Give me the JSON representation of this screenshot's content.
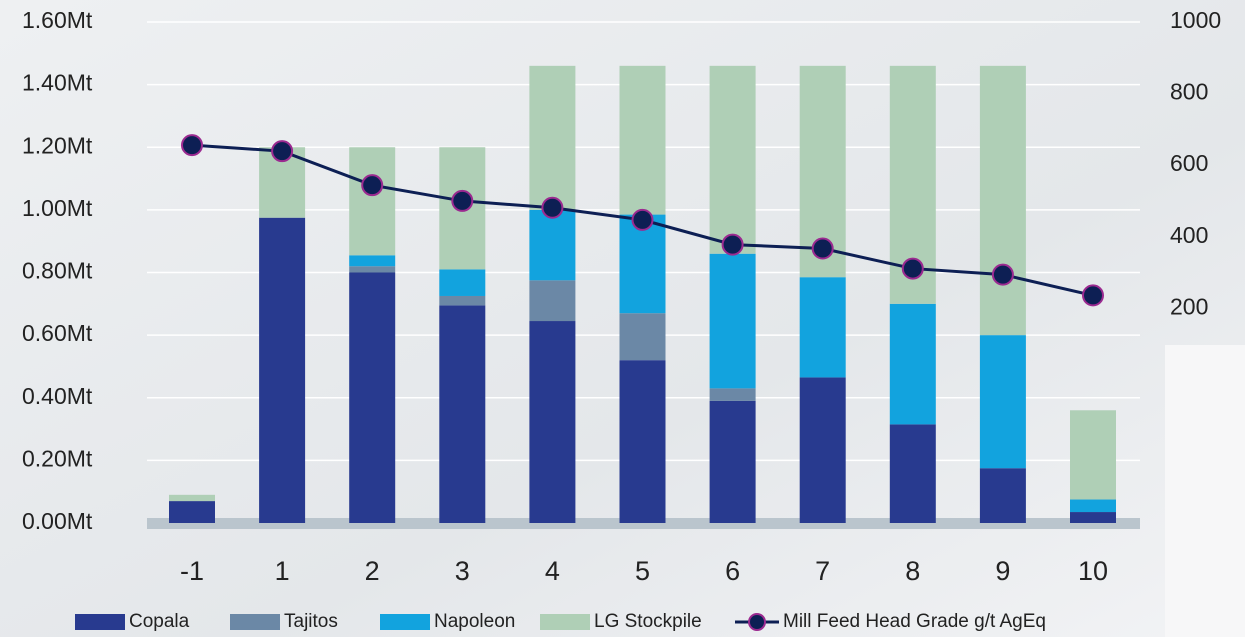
{
  "chart_data": {
    "type": "bar",
    "categories": [
      "-1",
      "1",
      "2",
      "3",
      "4",
      "5",
      "6",
      "7",
      "8",
      "9",
      "10"
    ],
    "series": [
      {
        "name": "Copala",
        "color": "#283a8f",
        "values": [
          0.07,
          0.975,
          0.8,
          0.695,
          0.645,
          0.52,
          0.39,
          0.465,
          0.315,
          0.175,
          0.035
        ]
      },
      {
        "name": "Tajitos",
        "color": "#6b88a6",
        "values": [
          0,
          0,
          0.02,
          0.03,
          0.13,
          0.15,
          0.04,
          0,
          0,
          0,
          0
        ]
      },
      {
        "name": "Napoleon",
        "color": "#12a3de",
        "values": [
          0,
          0,
          0.035,
          0.085,
          0.225,
          0.315,
          0.43,
          0.32,
          0.385,
          0.425,
          0.04
        ]
      },
      {
        "name": "LG Stockpile",
        "color": "#afcfb6",
        "values": [
          0.02,
          0.225,
          0.345,
          0.39,
          0.46,
          0.475,
          0.6,
          0.675,
          0.76,
          0.86,
          0.285
        ]
      },
      {
        "name": "Mill Feed Head Grade g/t AgEq",
        "type": "line",
        "axis": "y2",
        "color": "#0d1f54",
        "marker_edge": "#9b2a90",
        "values": [
          656,
          639,
          544,
          500,
          481,
          447,
          378,
          367,
          311,
          294,
          236
        ]
      }
    ],
    "ylim": [
      0,
      1.6
    ],
    "yticks": [
      {
        "value": 0,
        "label": "0.00Mt"
      },
      {
        "value": 0.2,
        "label": "0.20Mt"
      },
      {
        "value": 0.4,
        "label": "0.40Mt"
      },
      {
        "value": 0.6,
        "label": "0.60Mt"
      },
      {
        "value": 0.8,
        "label": "0.80Mt"
      },
      {
        "value": 1.0,
        "label": "1.00Mt"
      },
      {
        "value": 1.2,
        "label": "1.20Mt"
      },
      {
        "value": 1.4,
        "label": "1.40Mt"
      },
      {
        "value": 1.6,
        "label": "1.60Mt"
      }
    ],
    "y2lim": [
      -400,
      1000
    ],
    "y2ticks": [
      200,
      400,
      600,
      800,
      1000
    ],
    "grid": true,
    "legend": "bottom",
    "stacked": true
  }
}
